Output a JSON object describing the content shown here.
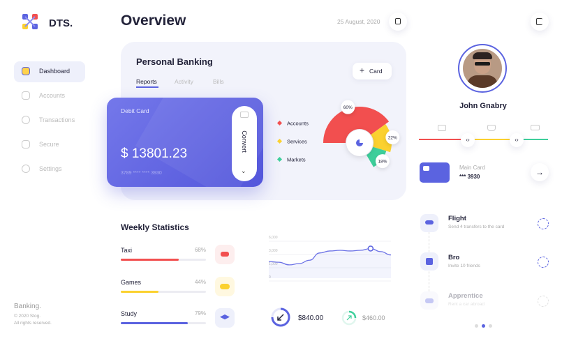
{
  "brand": "DTS.",
  "nav": [
    "Dashboard",
    "Accounts",
    "Transactions",
    "Secure",
    "Settings"
  ],
  "footer": {
    "title": "Banking.",
    "copyright": "© 2020 Stog.",
    "rights": "All rights reserved."
  },
  "header": {
    "title": "Overview",
    "date": "25 August, 2020"
  },
  "banking": {
    "title": "Personal Banking",
    "tabs": [
      "Reports",
      "Activity",
      "Bills"
    ],
    "button": "Card",
    "card": {
      "label": "Debit Card",
      "balance": "$ 13801.23",
      "number": "3789 **** **** 3930",
      "action": "Convert"
    },
    "pie": [
      {
        "name": "Accounts",
        "value": 60,
        "label": "60%",
        "color": "#f24f4f"
      },
      {
        "name": "Services",
        "value": 22,
        "label": "22%",
        "color": "#fbd12f"
      },
      {
        "name": "Markets",
        "value": 18,
        "label": "18%",
        "color": "#3ecf9b"
      }
    ]
  },
  "stats": {
    "title": "Weekly Statistics",
    "items": [
      {
        "name": "Taxi",
        "value": 68,
        "label": "68%",
        "color": "#f24f4f"
      },
      {
        "name": "Games",
        "value": 44,
        "label": "44%",
        "color": "#fbd12f"
      },
      {
        "name": "Study",
        "value": 79,
        "label": "79%",
        "color": "#5b63e0"
      }
    ],
    "line": {
      "yticks": [
        {
          "value": 6000,
          "label": "6,000"
        },
        {
          "value": 3000,
          "label": "3,000"
        },
        {
          "value": 1000,
          "label": "1,000"
        },
        0
      ],
      "values": [
        1300,
        1200,
        900,
        1000,
        1500,
        2600,
        2900,
        3000,
        2900,
        3000,
        3400,
        2800,
        2300
      ],
      "highlight": 10
    },
    "balances": [
      "$840.00",
      "$460.00"
    ]
  },
  "profile": {
    "name": "John Gnabry",
    "card_label": "Main Card",
    "card_number": "*** 3930"
  },
  "transactions": [
    {
      "title": "Flight",
      "subtitle": "Send 4 transfers to the card"
    },
    {
      "title": "Bro",
      "subtitle": "Invite 10 friends"
    },
    {
      "title": "Apprentice",
      "subtitle": "Rent a car abroad"
    }
  ]
}
